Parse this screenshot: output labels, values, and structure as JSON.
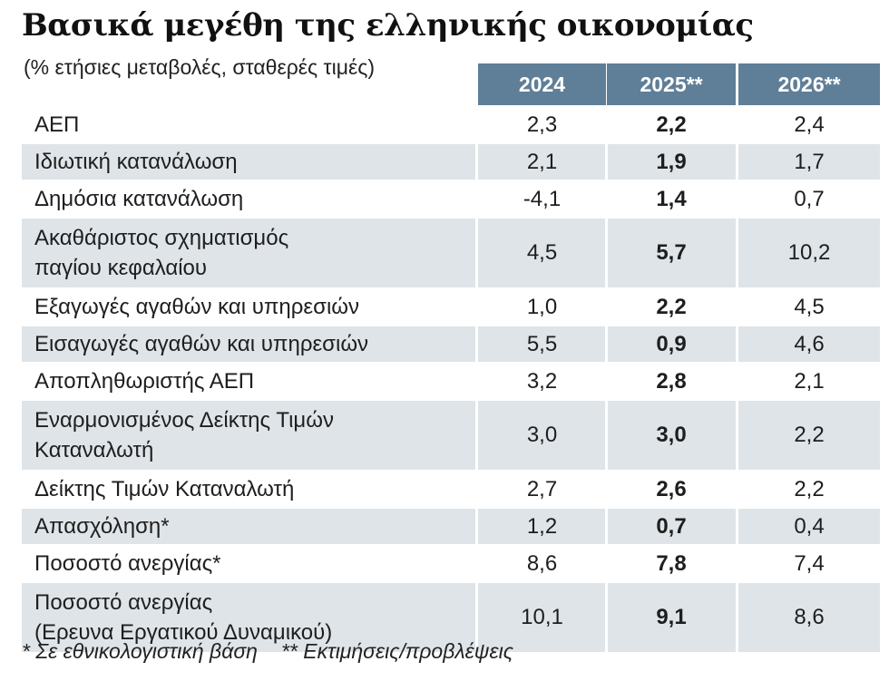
{
  "title": "Βασικά μεγέθη της ελληνικής οικονομίας",
  "subtitle": "(% ετήσιες μεταβολές, σταθερές τιμές)",
  "footnotes": {
    "note1": "* Σε εθνικολογιστική βάση",
    "note2": "** Εκτιμήσεις/προβλέψεις"
  },
  "colors": {
    "header_bg": "#5f7f98",
    "row_shade": "#dfe4e8"
  },
  "chart_data": {
    "type": "table",
    "title": "Βασικά μεγέθη της ελληνικής οικονομίας",
    "subtitle": "(% ετήσιες μεταβολές, σταθερές τιμές)",
    "columns": [
      "2024",
      "2025**",
      "2026**"
    ],
    "highlight_column": "2025**",
    "rows": [
      {
        "label": [
          "ΑΕΠ"
        ],
        "values": [
          "2,3",
          "2,2",
          "2,4"
        ]
      },
      {
        "label": [
          "Ιδιωτική κατανάλωση"
        ],
        "values": [
          "2,1",
          "1,9",
          "1,7"
        ]
      },
      {
        "label": [
          "Δημόσια κατανάλωση"
        ],
        "values": [
          "-4,1",
          "1,4",
          "0,7"
        ]
      },
      {
        "label": [
          "Ακαθάριστος σχηματισμός",
          "παγίου κεφαλαίου"
        ],
        "values": [
          "4,5",
          "5,7",
          "10,2"
        ]
      },
      {
        "label": [
          "Εξαγωγές αγαθών και υπηρεσιών"
        ],
        "values": [
          "1,0",
          "2,2",
          "4,5"
        ]
      },
      {
        "label": [
          "Εισαγωγές αγαθών και υπηρεσιών"
        ],
        "values": [
          "5,5",
          "0,9",
          "4,6"
        ]
      },
      {
        "label": [
          "Αποπληθωριστής ΑΕΠ"
        ],
        "values": [
          "3,2",
          "2,8",
          "2,1"
        ]
      },
      {
        "label": [
          "Εναρμονισμένος Δείκτης Τιμών",
          "Καταναλωτή"
        ],
        "values": [
          "3,0",
          "3,0",
          "2,2"
        ]
      },
      {
        "label": [
          "Δείκτης Τιμών Καταναλωτή"
        ],
        "values": [
          "2,7",
          "2,6",
          "2,2"
        ]
      },
      {
        "label": [
          "Απασχόληση*"
        ],
        "values": [
          "1,2",
          "0,7",
          "0,4"
        ]
      },
      {
        "label": [
          "Ποσοστό ανεργίας*"
        ],
        "values": [
          "8,6",
          "7,8",
          "7,4"
        ]
      },
      {
        "label": [
          "Ποσοστό ανεργίας",
          "(Ερευνα Εργατικού Δυναμικού)"
        ],
        "values": [
          "10,1",
          "9,1",
          "8,6"
        ]
      }
    ]
  }
}
